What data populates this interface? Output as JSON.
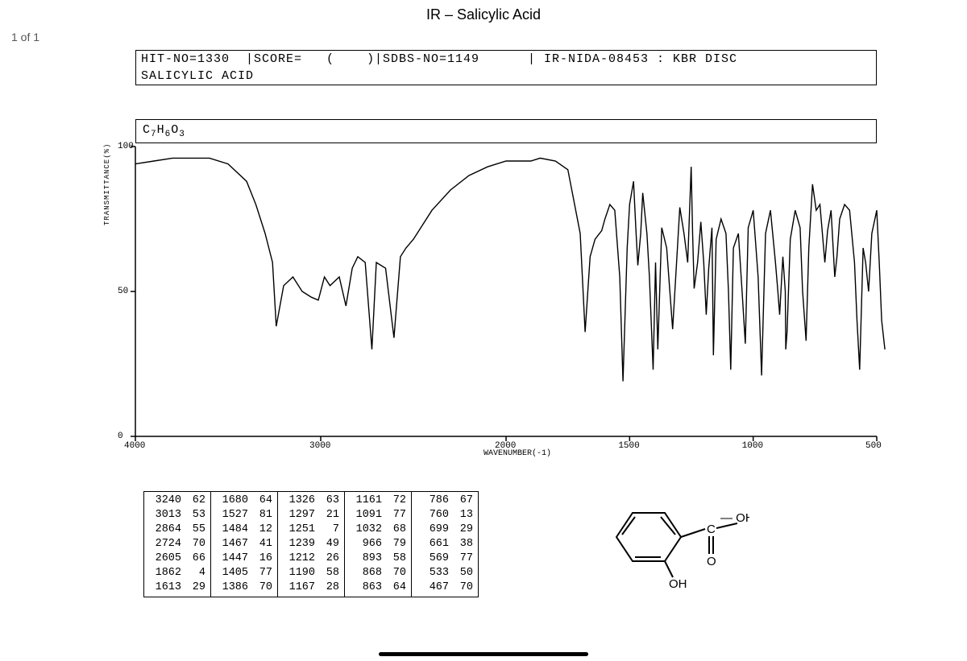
{
  "title": "IR – Salicylic Acid",
  "page_indicator": "1 of 1",
  "header": {
    "hit_no": "HIT-NO=1330",
    "score": "|SCORE=   (    )",
    "sdbs_no": "|SDBS-NO=1149",
    "ir_nida": "| IR-NIDA-08453 : KBR DISC",
    "compound": "SALICYLIC ACID"
  },
  "formula_html": "C<sub>7</sub>H<sub>6</sub>O<sub>3</sub>",
  "chart": {
    "type": "line",
    "xlim": [
      4000,
      500
    ],
    "ylim": [
      0,
      100
    ],
    "y_ticks": [
      {
        "v": 0,
        "l": "0"
      },
      {
        "v": 50,
        "l": "50"
      },
      {
        "v": 100,
        "l": "100"
      }
    ],
    "x_ticks": [
      {
        "v": 4000,
        "l": "4000"
      },
      {
        "v": 3000,
        "l": "3000"
      },
      {
        "v": 2000,
        "l": "2000"
      },
      {
        "v": 1500,
        "l": "1500"
      },
      {
        "v": 1000,
        "l": "1000"
      },
      {
        "v": 500,
        "l": "500"
      }
    ],
    "x_axis_label": "WAVENUMBER(-1)",
    "y_axis_label": "TRANSMITTANCE(%)",
    "line_color": "#000000",
    "line_width": 1.4,
    "background": "#ffffff",
    "trace": [
      [
        4000,
        94
      ],
      [
        3900,
        95
      ],
      [
        3800,
        96
      ],
      [
        3700,
        96
      ],
      [
        3600,
        96
      ],
      [
        3500,
        94
      ],
      [
        3400,
        88
      ],
      [
        3350,
        80
      ],
      [
        3300,
        70
      ],
      [
        3260,
        60
      ],
      [
        3240,
        38
      ],
      [
        3200,
        52
      ],
      [
        3150,
        55
      ],
      [
        3100,
        50
      ],
      [
        3050,
        48
      ],
      [
        3013,
        47
      ],
      [
        2980,
        55
      ],
      [
        2950,
        52
      ],
      [
        2900,
        55
      ],
      [
        2864,
        45
      ],
      [
        2830,
        58
      ],
      [
        2800,
        62
      ],
      [
        2760,
        60
      ],
      [
        2724,
        30
      ],
      [
        2700,
        60
      ],
      [
        2650,
        58
      ],
      [
        2605,
        34
      ],
      [
        2570,
        62
      ],
      [
        2540,
        65
      ],
      [
        2500,
        68
      ],
      [
        2400,
        78
      ],
      [
        2300,
        85
      ],
      [
        2200,
        90
      ],
      [
        2100,
        93
      ],
      [
        2050,
        94
      ],
      [
        2000,
        95
      ],
      [
        1950,
        95
      ],
      [
        1900,
        95
      ],
      [
        1862,
        96
      ],
      [
        1800,
        95
      ],
      [
        1750,
        92
      ],
      [
        1700,
        70
      ],
      [
        1680,
        36
      ],
      [
        1660,
        62
      ],
      [
        1640,
        68
      ],
      [
        1613,
        71
      ],
      [
        1600,
        75
      ],
      [
        1580,
        80
      ],
      [
        1560,
        78
      ],
      [
        1540,
        55
      ],
      [
        1527,
        19
      ],
      [
        1510,
        65
      ],
      [
        1500,
        80
      ],
      [
        1484,
        88
      ],
      [
        1475,
        72
      ],
      [
        1467,
        59
      ],
      [
        1455,
        70
      ],
      [
        1447,
        84
      ],
      [
        1430,
        70
      ],
      [
        1420,
        55
      ],
      [
        1405,
        23
      ],
      [
        1395,
        60
      ],
      [
        1386,
        30
      ],
      [
        1370,
        72
      ],
      [
        1350,
        65
      ],
      [
        1326,
        37
      ],
      [
        1310,
        60
      ],
      [
        1297,
        79
      ],
      [
        1280,
        70
      ],
      [
        1265,
        60
      ],
      [
        1251,
        93
      ],
      [
        1245,
        70
      ],
      [
        1239,
        51
      ],
      [
        1225,
        60
      ],
      [
        1212,
        74
      ],
      [
        1200,
        60
      ],
      [
        1190,
        42
      ],
      [
        1180,
        58
      ],
      [
        1167,
        72
      ],
      [
        1161,
        28
      ],
      [
        1150,
        68
      ],
      [
        1130,
        75
      ],
      [
        1110,
        70
      ],
      [
        1100,
        50
      ],
      [
        1091,
        23
      ],
      [
        1080,
        65
      ],
      [
        1060,
        70
      ],
      [
        1045,
        50
      ],
      [
        1032,
        32
      ],
      [
        1020,
        72
      ],
      [
        1000,
        78
      ],
      [
        980,
        55
      ],
      [
        966,
        21
      ],
      [
        950,
        70
      ],
      [
        930,
        78
      ],
      [
        910,
        60
      ],
      [
        900,
        50
      ],
      [
        893,
        42
      ],
      [
        880,
        62
      ],
      [
        870,
        50
      ],
      [
        868,
        30
      ],
      [
        863,
        36
      ],
      [
        850,
        68
      ],
      [
        830,
        78
      ],
      [
        810,
        72
      ],
      [
        800,
        50
      ],
      [
        786,
        33
      ],
      [
        775,
        65
      ],
      [
        760,
        87
      ],
      [
        745,
        78
      ],
      [
        730,
        80
      ],
      [
        710,
        60
      ],
      [
        699,
        71
      ],
      [
        685,
        78
      ],
      [
        670,
        55
      ],
      [
        661,
        62
      ],
      [
        650,
        75
      ],
      [
        630,
        80
      ],
      [
        610,
        78
      ],
      [
        590,
        60
      ],
      [
        580,
        40
      ],
      [
        569,
        23
      ],
      [
        555,
        65
      ],
      [
        545,
        60
      ],
      [
        533,
        50
      ],
      [
        520,
        70
      ],
      [
        500,
        78
      ],
      [
        490,
        60
      ],
      [
        480,
        40
      ],
      [
        467,
        30
      ]
    ]
  },
  "peak_table": {
    "columns": [
      [
        [
          "3240",
          "62"
        ],
        [
          "3013",
          "53"
        ],
        [
          "2864",
          "55"
        ],
        [
          "2724",
          "70"
        ],
        [
          "2605",
          "66"
        ],
        [
          "1862",
          "4"
        ],
        [
          "1613",
          "29"
        ]
      ],
      [
        [
          "1680",
          "64"
        ],
        [
          "1527",
          "81"
        ],
        [
          "1484",
          "12"
        ],
        [
          "1467",
          "41"
        ],
        [
          "1447",
          "16"
        ],
        [
          "1405",
          "77"
        ],
        [
          "1386",
          "70"
        ]
      ],
      [
        [
          "1326",
          "63"
        ],
        [
          "1297",
          "21"
        ],
        [
          "1251",
          "7"
        ],
        [
          "1239",
          "49"
        ],
        [
          "1212",
          "26"
        ],
        [
          "1190",
          "58"
        ],
        [
          "1167",
          "28"
        ]
      ],
      [
        [
          "1161",
          "72"
        ],
        [
          "1091",
          "77"
        ],
        [
          "1032",
          "68"
        ],
        [
          "966",
          "79"
        ],
        [
          "893",
          "58"
        ],
        [
          "868",
          "70"
        ],
        [
          "863",
          "64"
        ]
      ],
      [
        [
          "786",
          "67"
        ],
        [
          "760",
          "13"
        ],
        [
          "699",
          "29"
        ],
        [
          "661",
          "38"
        ],
        [
          "569",
          "77"
        ],
        [
          "533",
          "50"
        ],
        [
          "467",
          "70"
        ]
      ]
    ]
  },
  "structure": {
    "labels": {
      "cooh": "OH",
      "oh": "OH",
      "c": "C",
      "o": "O"
    }
  }
}
